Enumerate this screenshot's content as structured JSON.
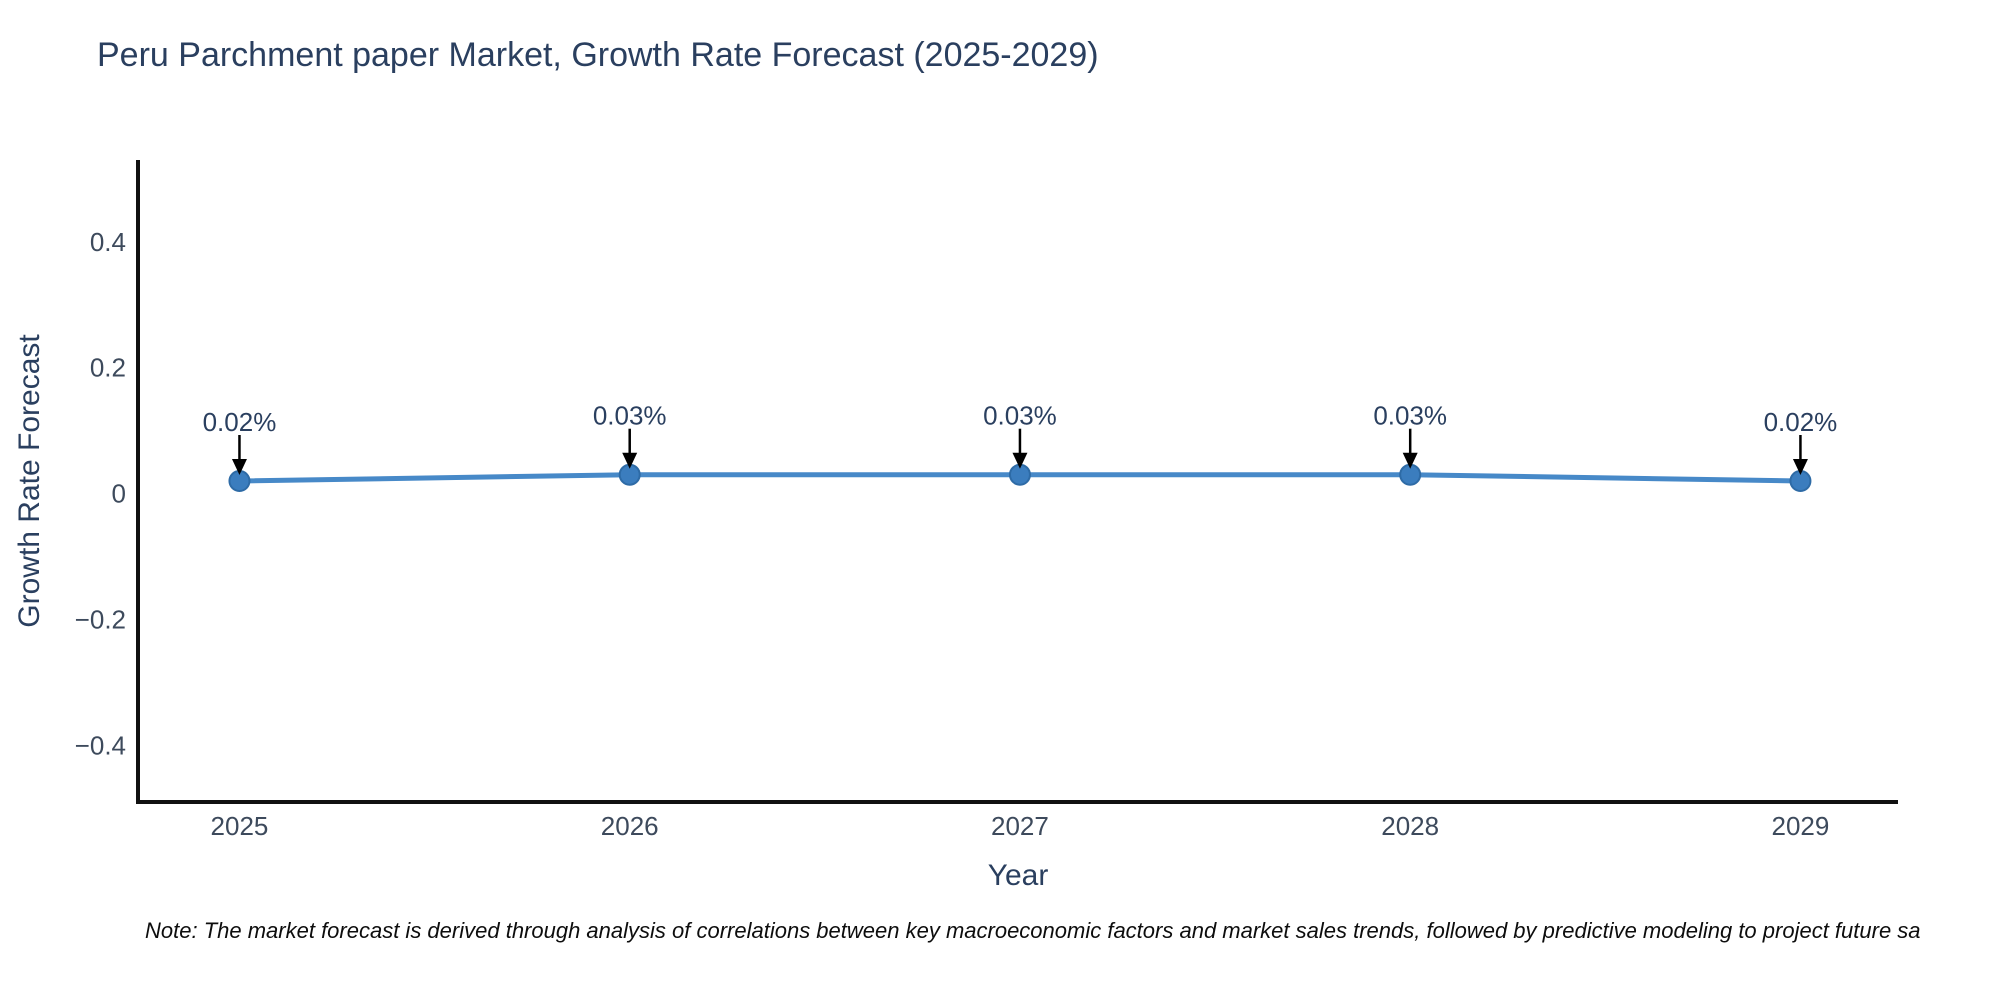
{
  "note": "Note: The market forecast is derived through analysis of correlations between key macroeconomic factors and market sales trends, followed by predictive modeling to project future sa",
  "colors": {
    "line": "#4789c8",
    "marker_fill": "#3b7dbe",
    "marker_edge": "#2e6ba6",
    "axis_line": "#111111",
    "tick_text": "#3d4a5c",
    "label_text": "#2a3f5f",
    "arrow": "#000000"
  },
  "chart_data": {
    "type": "line",
    "title": "Peru Parchment paper Market, Growth Rate Forecast (2025-2029)",
    "xlabel": "Year",
    "ylabel": "Growth Rate Forecast",
    "x": [
      2025,
      2026,
      2027,
      2028,
      2029
    ],
    "values": [
      0.02,
      0.03,
      0.03,
      0.03,
      0.02
    ],
    "point_labels": [
      "0.02%",
      "0.03%",
      "0.03%",
      "0.03%",
      "0.02%"
    ],
    "xtick_labels": [
      "2025",
      "2026",
      "2027",
      "2028",
      "2029"
    ],
    "yticks": [
      0.4,
      0.2,
      0,
      -0.2,
      -0.4
    ],
    "ytick_labels": [
      "0.4",
      "0.2",
      "0",
      "−0.2",
      "−0.4"
    ],
    "xlim": [
      2024.74,
      2029.25
    ],
    "ylim": [
      -0.49,
      0.53
    ],
    "grid": false,
    "legend": "none",
    "marker_style": "circle",
    "annotation_style": "text-with-down-arrow"
  }
}
